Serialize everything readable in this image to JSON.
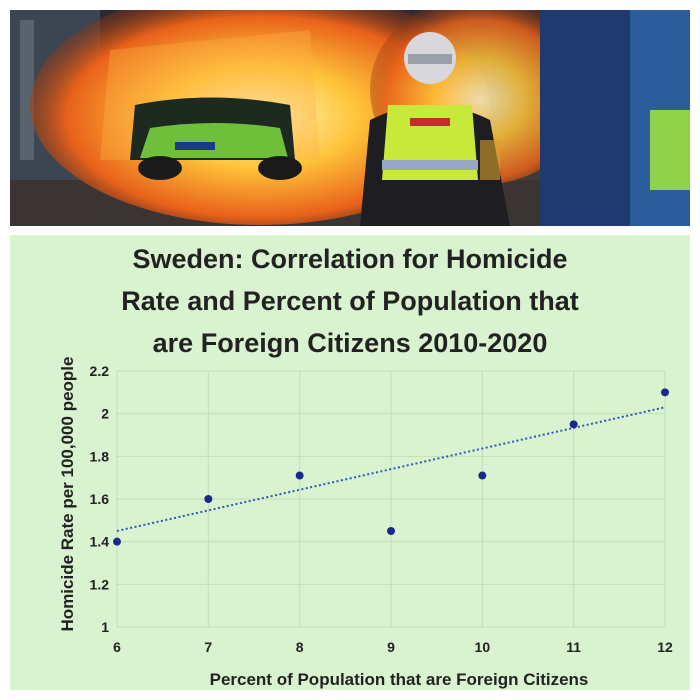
{
  "photo": {
    "description_icon": "burning-bus-photo"
  },
  "chart_data": {
    "type": "scatter",
    "title_lines": [
      "Sweden: Correlation for Homicide",
      "Rate and Percent of Population that",
      "are Foreign Citizens 2010-2020"
    ],
    "xlabel": "Percent of Population that are Foreign Citizens",
    "ylabel": "Homicide Rate per 100,000 people",
    "xlim": [
      6,
      12
    ],
    "ylim": [
      1,
      2.2
    ],
    "x_ticks": [
      "6",
      "7",
      "8",
      "9",
      "10",
      "11",
      "12"
    ],
    "y_ticks": [
      "1",
      "1.2",
      "1.4",
      "1.6",
      "1.8",
      "2",
      "2.2"
    ],
    "grid": true,
    "trendline": {
      "type": "linear",
      "style": "dotted",
      "x": [
        6,
        12
      ],
      "y": [
        1.45,
        2.03
      ]
    },
    "series": [
      {
        "points": [
          {
            "x": 6,
            "y": 1.4
          },
          {
            "x": 7,
            "y": 1.6
          },
          {
            "x": 8,
            "y": 1.71
          },
          {
            "x": 9,
            "y": 1.45
          },
          {
            "x": 10,
            "y": 1.71
          },
          {
            "x": 11,
            "y": 1.95
          },
          {
            "x": 12,
            "y": 2.1
          }
        ]
      }
    ],
    "colors": {
      "background": "#d9f2d0",
      "grid": "#bfe0b6",
      "marker": "#1a2a8c",
      "trendline": "#2e56b8"
    }
  }
}
